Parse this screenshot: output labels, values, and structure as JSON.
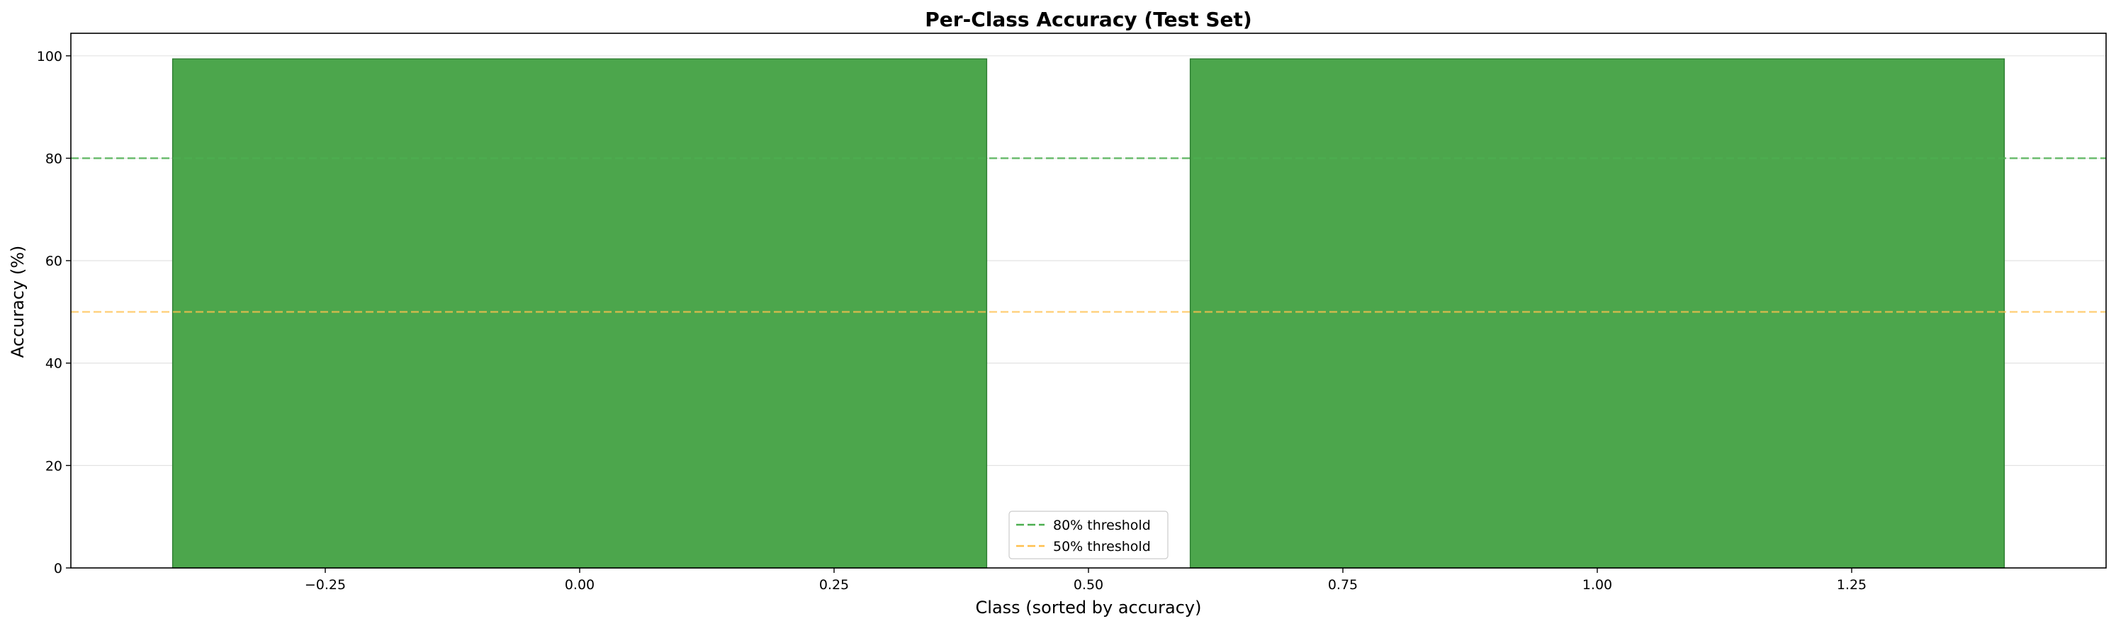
{
  "chart_data": {
    "type": "bar",
    "title": "Per-Class Accuracy (Test Set)",
    "xlabel": "Class (sorted by accuracy)",
    "ylabel": "Accuracy (%)",
    "x": [
      0,
      1
    ],
    "values": [
      99.4,
      99.4
    ],
    "bar_width": 0.8,
    "bar_color": "#4ca64c",
    "bar_edge_color": "#2e7d32",
    "xlim": [
      -0.5,
      1.5
    ],
    "ylim": [
      0,
      104.4
    ],
    "xticks": [
      -0.25,
      0.0,
      0.25,
      0.5,
      0.75,
      1.0,
      1.25
    ],
    "xtick_labels": [
      "−0.25",
      "0.00",
      "0.25",
      "0.50",
      "0.75",
      "1.00",
      "1.25"
    ],
    "yticks": [
      0,
      20,
      40,
      60,
      80,
      100
    ],
    "ytick_labels": [
      "0",
      "20",
      "40",
      "60",
      "80",
      "100"
    ],
    "grid": "y",
    "thresholds": [
      {
        "name": "80% threshold",
        "value": 80,
        "color": "#4caf50"
      },
      {
        "name": "50% threshold",
        "value": 50,
        "color": "#ffc04d"
      }
    ],
    "legend_position": "bottom-center"
  }
}
